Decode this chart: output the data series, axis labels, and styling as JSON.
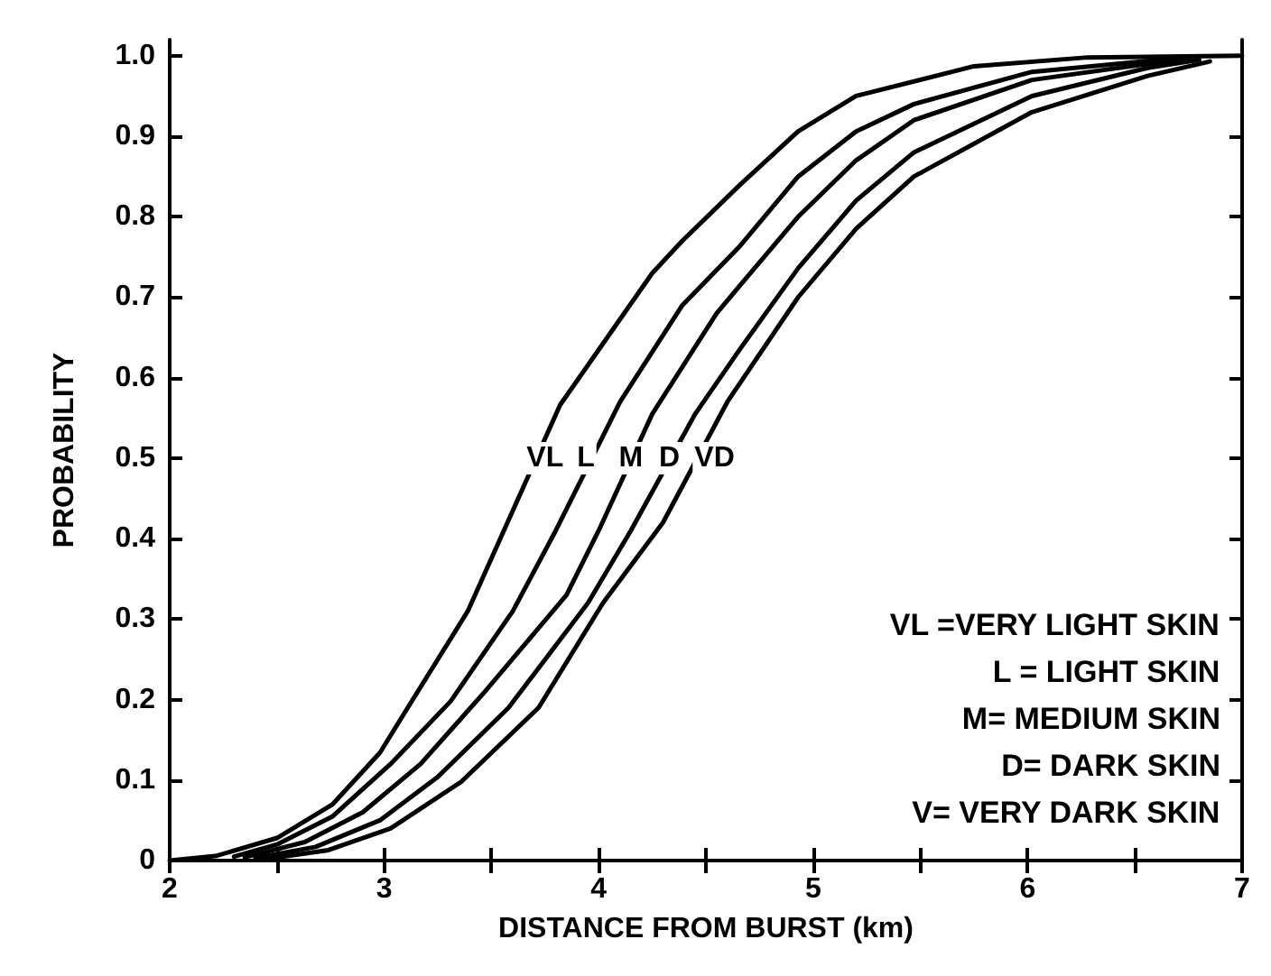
{
  "chart_data": {
    "type": "line",
    "xlabel": "DISTANCE FROM BURST (km)",
    "ylabel": "PROBABILITY",
    "xlim": [
      2,
      7
    ],
    "ylim": [
      0,
      1.02
    ],
    "xticks": [
      2,
      {
        "value": 2.5,
        "label": null
      },
      3,
      {
        "value": 3.5,
        "label": null
      },
      4,
      {
        "value": 4.5,
        "label": null
      },
      5,
      {
        "value": 5.5,
        "label": null
      },
      6,
      {
        "value": 6.5,
        "label": null
      },
      7
    ],
    "yticks": [
      0,
      0.1,
      0.2,
      0.3,
      0.4,
      0.5,
      0.6,
      0.7,
      0.8,
      0.9,
      {
        "value": 1,
        "label": "1.0"
      }
    ],
    "grid": false,
    "marker": "none",
    "line_style": "solid",
    "series": [
      {
        "color": "#000000",
        "x": [
          2,
          2.22,
          2.5,
          2.76,
          2.98,
          3.11,
          3.39,
          3.82,
          4.25,
          4.39,
          4.66,
          4.93,
          5.2,
          5.75,
          6.28,
          7
        ],
        "values": [
          0,
          0.006,
          0.028,
          0.07,
          0.134,
          0.19,
          0.31,
          0.566,
          0.73,
          0.77,
          0.84,
          0.906,
          0.95,
          0.987,
          0.998,
          1.0
        ]
      },
      {
        "color": "#000000",
        "x": [
          2.3,
          2.5,
          2.76,
          3.03,
          3.31,
          3.6,
          3.8,
          4.1,
          4.39,
          4.66,
          4.93,
          5.2,
          5.47,
          6.02,
          6.7
        ],
        "values": [
          0.005,
          0.02,
          0.055,
          0.12,
          0.198,
          0.31,
          0.41,
          0.57,
          0.69,
          0.764,
          0.85,
          0.906,
          0.94,
          0.98,
          0.997
        ]
      },
      {
        "color": "#000000",
        "x": [
          2.35,
          2.63,
          2.9,
          3.17,
          3.47,
          3.85,
          4.0,
          4.25,
          4.55,
          4.66,
          4.93,
          5.2,
          5.47,
          6.02,
          6.75
        ],
        "values": [
          0.004,
          0.023,
          0.06,
          0.12,
          0.21,
          0.33,
          0.41,
          0.555,
          0.68,
          0.715,
          0.8,
          0.87,
          0.92,
          0.97,
          0.997
        ]
      },
      {
        "color": "#000000",
        "x": [
          2.4,
          2.68,
          2.98,
          3.25,
          3.58,
          3.95,
          4.15,
          4.45,
          4.66,
          4.93,
          5.2,
          5.47,
          6.02,
          6.56,
          6.8
        ],
        "values": [
          0.003,
          0.017,
          0.05,
          0.104,
          0.19,
          0.32,
          0.41,
          0.555,
          0.636,
          0.736,
          0.82,
          0.88,
          0.95,
          0.985,
          0.995
        ]
      },
      {
        "color": "#000000",
        "x": [
          2.45,
          2.74,
          3.03,
          3.36,
          3.72,
          4.02,
          4.3,
          4.6,
          4.93,
          5.2,
          5.47,
          6.02,
          6.56,
          6.85
        ],
        "values": [
          0.002,
          0.013,
          0.04,
          0.098,
          0.19,
          0.32,
          0.42,
          0.57,
          0.7,
          0.785,
          0.85,
          0.93,
          0.975,
          0.993
        ]
      }
    ],
    "annotations": [
      {
        "text": "VL",
        "x": 3.75,
        "y": 0.5
      },
      {
        "text": "L",
        "x": 3.94,
        "y": 0.5
      },
      {
        "text": "M",
        "x": 4.15,
        "y": 0.5
      },
      {
        "text": "D",
        "x": 4.33,
        "y": 0.5
      },
      {
        "text": "VD",
        "x": 4.54,
        "y": 0.5
      },
      "VL =VERY LIGHT SKIN",
      "L = LIGHT SKIN",
      "M= MEDIUM SKIN",
      "D= DARK SKIN",
      "V= VERY DARK SKIN"
    ]
  }
}
